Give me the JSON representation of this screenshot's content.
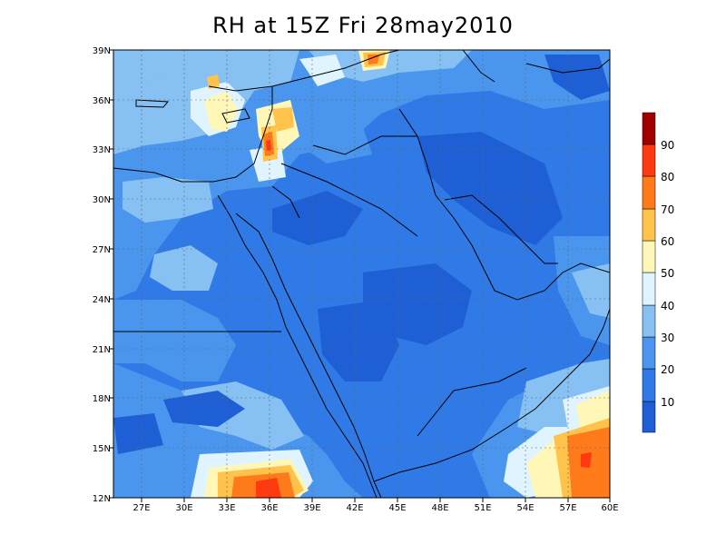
{
  "title": "RH at 15Z Fri 28may2010",
  "lat_labels": [
    "39N",
    "36N",
    "33N",
    "30N",
    "27N",
    "24N",
    "21N",
    "18N",
    "15N",
    "12N"
  ],
  "lon_labels": [
    "27E",
    "30E",
    "33E",
    "36E",
    "39E",
    "42E",
    "45E",
    "48E",
    "51E",
    "54E",
    "57E",
    "60E"
  ],
  "colorbar": {
    "labels": [
      "90",
      "80",
      "70",
      "60",
      "50",
      "40",
      "30",
      "20",
      "10"
    ],
    "colors": [
      "#1f5fd6",
      "#2f7ae6",
      "#4a96ee",
      "#87c0f2",
      "#dff4ff",
      "#fff7b8",
      "#ffc24a",
      "#ff7a1a",
      "#ff3a10",
      "#cc1010",
      "#a00000"
    ]
  },
  "chart_data": {
    "type": "heatmap",
    "title": "RH at 15Z Fri 28may2010",
    "xlim": [
      25,
      60
    ],
    "ylim": [
      12,
      39
    ],
    "x_ticks": [
      27,
      30,
      33,
      36,
      39,
      42,
      45,
      48,
      51,
      54,
      57,
      60
    ],
    "y_ticks": [
      12,
      15,
      18,
      21,
      24,
      27,
      30,
      33,
      36,
      39
    ],
    "levels": [
      10,
      20,
      30,
      40,
      50,
      60,
      70,
      80,
      90
    ]
  }
}
